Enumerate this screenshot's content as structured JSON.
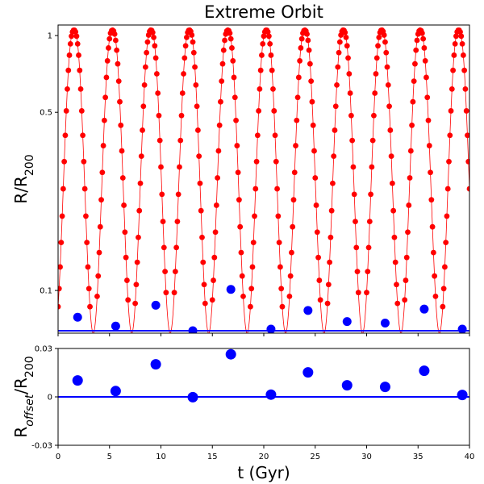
{
  "chart_data": [
    {
      "type": "line",
      "panel": "top",
      "title": "Extreme Orbit",
      "ylabel": "R/R200",
      "ylabel_main": "R/R",
      "ylabel_sub": "200",
      "yscale": "log",
      "ylim": [
        0.068,
        1.1
      ],
      "xlim": [
        0,
        40
      ],
      "yticks": [
        0.1,
        0.5,
        1
      ],
      "ytick_labels": [
        "0.1",
        "0.5",
        "1"
      ],
      "series": [
        {
          "name": "orbit",
          "color": "#ff0000",
          "style": "line+markers",
          "model": {
            "period_gyr": 3.74,
            "phase_gyr": 1.55,
            "r_max": 1.05,
            "r_min": 0.068,
            "sample_step_gyr": 0.1
          }
        },
        {
          "name": "pericenter",
          "color": "#0000ff",
          "style": "markers",
          "x": [
            1.9,
            5.6,
            9.5,
            13.1,
            16.8,
            20.7,
            24.3,
            28.1,
            31.8,
            35.6,
            39.3
          ],
          "values": [
            0.0785,
            0.0725,
            0.0875,
            0.0695,
            0.101,
            0.0705,
            0.0835,
            0.0755,
            0.0745,
            0.0845,
            0.0705
          ]
        },
        {
          "name": "baseline",
          "color": "#0000ff",
          "style": "line",
          "value": 0.0695
        }
      ]
    },
    {
      "type": "scatter",
      "panel": "bottom",
      "xlabel": "t (Gyr)",
      "ylabel": "Roffset/R200",
      "ylabel_main": "R",
      "ylabel_sub1": "offset",
      "ylabel_mid": "/R",
      "ylabel_sub2": "200",
      "xlim": [
        0,
        40
      ],
      "ylim": [
        -0.03,
        0.03
      ],
      "xticks": [
        0,
        5,
        10,
        15,
        20,
        25,
        30,
        35,
        40
      ],
      "xtick_labels": [
        "0",
        "5",
        "10",
        "15",
        "20",
        "25",
        "30",
        "35",
        "40"
      ],
      "yticks": [
        -0.03,
        0,
        0.03
      ],
      "ytick_labels": [
        "-0.03",
        "0",
        "0.03"
      ],
      "series": [
        {
          "name": "offset",
          "color": "#0000ff",
          "x": [
            1.9,
            5.6,
            9.5,
            13.1,
            16.8,
            20.7,
            24.3,
            28.1,
            31.8,
            35.6,
            39.3
          ],
          "values": [
            0.0102,
            0.0036,
            0.0202,
            -0.0002,
            0.0264,
            0.0014,
            0.0152,
            0.0072,
            0.0062,
            0.0162,
            0.0012
          ]
        },
        {
          "name": "zero-line",
          "color": "#0000ff",
          "value": 0
        }
      ]
    }
  ]
}
